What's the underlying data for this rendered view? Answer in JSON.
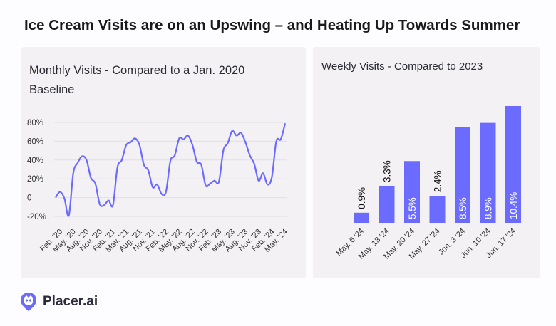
{
  "title": "Ice Cream Visits are on an Upswing – and Heating Up Towards Summer",
  "brand": "Placer.ai",
  "colors": {
    "accent": "#6b6bff",
    "panel": "#f3f1f4"
  },
  "chart_data": [
    {
      "type": "line",
      "title": "Monthly Visits - Compared to a Jan. 2020 Baseline",
      "y_ticks": [
        "80%",
        "60%",
        "40%",
        "20%",
        "0",
        "-20%"
      ],
      "y_tick_values": [
        80,
        60,
        40,
        20,
        0,
        -20
      ],
      "ylim": [
        -20,
        80
      ],
      "x_tick_labels": [
        "Feb. '20",
        "May. '20",
        "Aug. '20",
        "Nov. '20",
        "Feb. '21",
        "May. '21",
        "Aug. '21",
        "Nov. '21",
        "Feb. '22",
        "May. '22",
        "Aug. '22",
        "Nov. '22",
        "Feb. '23",
        "May. '23",
        "Aug. '23",
        "Nov. '23",
        "Feb. '24",
        "May. '24"
      ],
      "x": [
        "Jan 2020",
        "Feb 2020",
        "Mar 2020",
        "Apr 2020",
        "May 2020",
        "Jun 2020",
        "Jul 2020",
        "Aug 2020",
        "Sep 2020",
        "Oct 2020",
        "Nov 2020",
        "Dec 2020",
        "Jan 2021",
        "Feb 2021",
        "Mar 2021",
        "Apr 2021",
        "May 2021",
        "Jun 2021",
        "Jul 2021",
        "Aug 2021",
        "Sep 2021",
        "Oct 2021",
        "Nov 2021",
        "Dec 2021",
        "Jan 2022",
        "Feb 2022",
        "Mar 2022",
        "Apr 2022",
        "May 2022",
        "Jun 2022",
        "Jul 2022",
        "Aug 2022",
        "Sep 2022",
        "Oct 2022",
        "Nov 2022",
        "Dec 2022",
        "Jan 2023",
        "Feb 2023",
        "Mar 2023",
        "Apr 2023",
        "May 2023",
        "Jun 2023",
        "Jul 2023",
        "Aug 2023",
        "Sep 2023",
        "Oct 2023",
        "Nov 2023",
        "Dec 2023",
        "Jan 2024",
        "Feb 2024",
        "Mar 2024",
        "Apr 2024",
        "May 2024"
      ],
      "values": [
        0,
        6,
        -1,
        -19,
        26,
        37,
        44,
        40,
        21,
        15,
        -7,
        -8,
        -3,
        -8,
        32,
        40,
        56,
        59,
        63,
        56,
        35,
        29,
        11,
        14,
        4,
        6,
        39,
        45,
        63,
        62,
        66,
        56,
        38,
        35,
        13,
        15,
        18,
        17,
        50,
        58,
        71,
        66,
        69,
        59,
        45,
        36,
        18,
        26,
        14,
        22,
        60,
        62,
        79
      ]
    },
    {
      "type": "bar",
      "title": "Weekly Visits - Compared to 2023",
      "categories": [
        "May. 6 '24",
        "May. 13 '24",
        "May. 20 '24",
        "May. 27 '24",
        "Jun. 3 '24",
        "Jun. 10 '24",
        "Jun. 17 '24"
      ],
      "values": [
        0.9,
        3.3,
        5.5,
        2.4,
        8.5,
        8.9,
        10.4
      ],
      "labels": [
        "0.9%",
        "3.3%",
        "5.5%",
        "2.4%",
        "8.5%",
        "8.9%",
        "10.4%"
      ]
    }
  ]
}
